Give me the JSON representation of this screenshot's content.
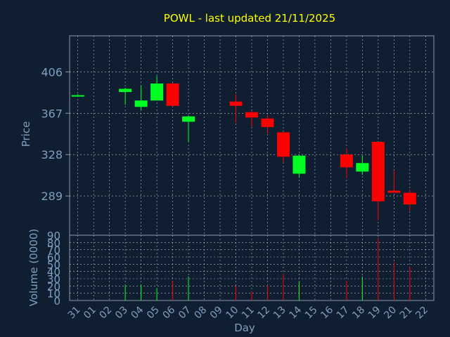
{
  "chart_data": {
    "type": "candlestick",
    "title": "POWL - last updated 21/11/2025",
    "xlabel": "Day",
    "ylabel_price": "Price",
    "ylabel_volume": "Volume (0000)",
    "price_ticks": [
      289,
      328,
      367,
      406
    ],
    "price_ylim": [
      252,
      440
    ],
    "volume_ticks": [
      0,
      10,
      20,
      30,
      40,
      50,
      60,
      70,
      80,
      90
    ],
    "volume_ylim": [
      0,
      90
    ],
    "x_ticks": [
      "31",
      "01",
      "02",
      "03",
      "04",
      "05",
      "06",
      "07",
      "08",
      "09",
      "10",
      "11",
      "12",
      "13",
      "14",
      "15",
      "16",
      "17",
      "18",
      "19",
      "20",
      "21",
      "22"
    ],
    "grid": true,
    "colors": {
      "background": "#0f1f31",
      "up": "#00ff22",
      "down": "#ff0000",
      "title": "#ffff00",
      "axis_text": "#7f9fbf",
      "grid": "#ffffff"
    },
    "candles": [
      {
        "day": "31",
        "open": 384,
        "high": 385,
        "low": 384,
        "close": 384,
        "volume": 0
      },
      {
        "day": "03",
        "open": 387,
        "high": 391,
        "low": 375,
        "close": 390,
        "volume": 21
      },
      {
        "day": "04",
        "open": 373,
        "high": 393,
        "low": 370,
        "close": 379,
        "volume": 22
      },
      {
        "day": "05",
        "open": 379,
        "high": 402,
        "low": 379,
        "close": 395,
        "volume": 17
      },
      {
        "day": "06",
        "open": 395,
        "high": 396,
        "low": 373,
        "close": 374,
        "volume": 27
      },
      {
        "day": "07",
        "open": 359,
        "high": 365,
        "low": 340,
        "close": 364,
        "volume": 33
      },
      {
        "day": "10",
        "open": 378,
        "high": 385,
        "low": 358,
        "close": 374,
        "volume": 20
      },
      {
        "day": "11",
        "open": 368,
        "high": 369,
        "low": 354,
        "close": 363,
        "volume": 13
      },
      {
        "day": "12",
        "open": 362,
        "high": 365,
        "low": 348,
        "close": 354,
        "volume": 21
      },
      {
        "day": "13",
        "open": 349,
        "high": 349,
        "low": 321,
        "close": 326,
        "volume": 37
      },
      {
        "day": "14",
        "open": 310,
        "high": 328,
        "low": 306,
        "close": 327,
        "volume": 26
      },
      {
        "day": "17",
        "open": 328,
        "high": 334,
        "low": 306,
        "close": 316,
        "volume": 27
      },
      {
        "day": "18",
        "open": 312,
        "high": 327,
        "low": 309,
        "close": 320,
        "volume": 33
      },
      {
        "day": "19",
        "open": 340,
        "high": 340,
        "low": 266,
        "close": 284,
        "volume": 86
      },
      {
        "day": "20",
        "open": 294,
        "high": 313,
        "low": 292,
        "close": 292,
        "volume": 53
      },
      {
        "day": "21",
        "open": 292,
        "high": 295,
        "low": 275,
        "close": 281,
        "volume": 46
      }
    ]
  }
}
